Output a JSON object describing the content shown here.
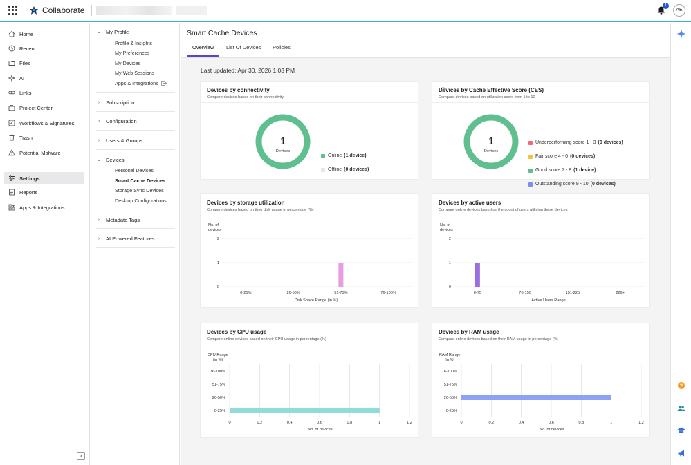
{
  "app": {
    "name": "Collaborate",
    "user_initials": "AE",
    "notification_count": "1"
  },
  "nav": {
    "items": [
      {
        "label": "Home",
        "icon": "home-icon"
      },
      {
        "label": "Recent",
        "icon": "clock-icon"
      },
      {
        "label": "Files",
        "icon": "folder-icon"
      },
      {
        "label": "AI",
        "icon": "sparkle-icon"
      },
      {
        "label": "Links",
        "icon": "link-icon"
      },
      {
        "label": "Project Center",
        "icon": "briefcase-icon"
      },
      {
        "label": "Workflows & Signatures",
        "icon": "workflow-icon"
      },
      {
        "label": "Trash",
        "icon": "trash-icon"
      },
      {
        "label": "Potential Malware",
        "icon": "warning-icon"
      },
      {
        "label": "Settings",
        "icon": "settings-icon"
      },
      {
        "label": "Reports",
        "icon": "report-icon"
      },
      {
        "label": "Apps & Integrations",
        "icon": "apps-icon"
      }
    ],
    "collapse_glyph": "«"
  },
  "settings_menu": {
    "my_profile": {
      "label": "My Profile",
      "items": [
        "Profile & Insights",
        "My Preferences",
        "My Devices",
        "My Web Sessions",
        "Apps & Integrations"
      ]
    },
    "subscription": "Subscription",
    "configuration": "Configuration",
    "users_groups": "Users & Groups",
    "devices": {
      "label": "Devices",
      "items": [
        "Personal Devices",
        "Smart Cache Devices",
        "Storage Sync Devices",
        "Desktop Configurations"
      ]
    },
    "metadata_tags": "Metadata Tags",
    "ai_features": "AI Powered Features"
  },
  "page": {
    "title": "Smart Cache Devices",
    "tabs": [
      "Overview",
      "List Of Devices",
      "Policies"
    ],
    "last_updated": "Last updated: Apr 30, 2026 1:03 PM"
  },
  "cards": {
    "connectivity": {
      "title": "Devices by connectivity",
      "subtitle": "Compare devices based on their connectivity",
      "center_value": "1",
      "center_label": "Devices",
      "legend": [
        {
          "label": "Online",
          "count": "(1 device)",
          "color": "#5fbf8f"
        },
        {
          "label": "Offline",
          "count": "(0 devices)",
          "color": "#e6e6e6"
        }
      ]
    },
    "ces": {
      "title": "Devices by Cache Effective Score (CES)",
      "subtitle": "Compare devices based on utilization score from 1 to 10",
      "center_value": "1",
      "center_label": "Devices",
      "legend": [
        {
          "label": "Underperforming score 1 - 3",
          "count": "(0 devices)",
          "color": "#ef6b73"
        },
        {
          "label": "Fair score 4 - 6",
          "count": "(0 devices)",
          "color": "#f5c242"
        },
        {
          "label": "Good score 7 - 8",
          "count": "(1 device)",
          "color": "#5fbf8f"
        },
        {
          "label": "Outstanding score 9 - 10",
          "count": "(0 devices)",
          "color": "#7c8ff0"
        }
      ]
    },
    "storage": {
      "title": "Devices by storage utilization",
      "subtitle": "Compare devices based on their disk usage in percentage (%)",
      "ylabel": [
        "No. of",
        "devices"
      ],
      "xlabel": "Disk Space Range (in %)"
    },
    "users": {
      "title": "Devices by active users",
      "subtitle": "Compare online devices based on the count of users utilising these devices",
      "ylabel": [
        "No. of",
        "devices"
      ],
      "xlabel": "Active Users Range"
    },
    "cpu": {
      "title": "Devices by CPU usage",
      "subtitle": "Compare online devices based on their CPU usage in percentage (%)",
      "ylabel": [
        "CPU Range",
        "(in %)"
      ],
      "xlabel": "No. of devices"
    },
    "ram": {
      "title": "Devices by RAM usage",
      "subtitle": "Compare online devices based on their RAM usage in percentage (%)",
      "ylabel": [
        "RAM Range",
        "(in %)"
      ],
      "xlabel": "No. of devices"
    }
  },
  "chart_data": [
    {
      "type": "pie",
      "categories": [
        "Online",
        "Offline"
      ],
      "values": [
        1,
        0
      ],
      "colors": [
        "#5fbf8f",
        "#e6e6e6"
      ]
    },
    {
      "type": "pie",
      "categories": [
        "Underperforming score 1 - 3",
        "Fair score 4 - 6",
        "Good score 7 - 8",
        "Outstanding score 9 - 10"
      ],
      "values": [
        0,
        0,
        1,
        0
      ],
      "colors": [
        "#ef6b73",
        "#f5c242",
        "#5fbf8f",
        "#7c8ff0"
      ]
    },
    {
      "type": "bar",
      "title": "Devices by storage utilization",
      "xlabel": "Disk Space Range (in %)",
      "ylabel": "No. of devices",
      "categories": [
        "0-25%",
        "26-50%",
        "51-75%",
        "76-100%"
      ],
      "values": [
        0,
        0,
        1,
        0
      ],
      "ylim": [
        0,
        2
      ],
      "yticks": [
        "0",
        "1",
        "2"
      ],
      "color": "#e59ee0"
    },
    {
      "type": "bar",
      "title": "Devices by active users",
      "xlabel": "Active Users Range",
      "ylabel": "No. of devices",
      "categories": [
        "0-75",
        "76-150",
        "151-225",
        "226+"
      ],
      "values": [
        1,
        0,
        0,
        0
      ],
      "ylim": [
        0,
        2
      ],
      "yticks": [
        "0",
        "1",
        "2"
      ],
      "color": "#9b6fe0"
    },
    {
      "type": "bar",
      "orientation": "horizontal",
      "title": "Devices by CPU usage",
      "xlabel": "No. of devices",
      "ylabel": "CPU Range (in %)",
      "categories": [
        "76-100%",
        "51-75%",
        "26-50%",
        "0-25%"
      ],
      "values": [
        0,
        0,
        0,
        1
      ],
      "xlim": [
        0,
        1.2
      ],
      "xticks": [
        "0",
        "0.2",
        "0.4",
        "0.6",
        "0.8",
        "1",
        "1.2"
      ],
      "color": "#8fdcd8"
    },
    {
      "type": "bar",
      "orientation": "horizontal",
      "title": "Devices by RAM usage",
      "xlabel": "No. of devices",
      "ylabel": "RAM Range (in %)",
      "categories": [
        "76-100%",
        "51-75%",
        "26-50%",
        "0-25%"
      ],
      "values": [
        0,
        0,
        1,
        0
      ],
      "xlim": [
        0,
        1.2
      ],
      "xticks": [
        "0",
        "0.2",
        "0.4",
        "0.6",
        "0.8",
        "1",
        "1.2"
      ],
      "color": "#8ea2f5"
    }
  ]
}
